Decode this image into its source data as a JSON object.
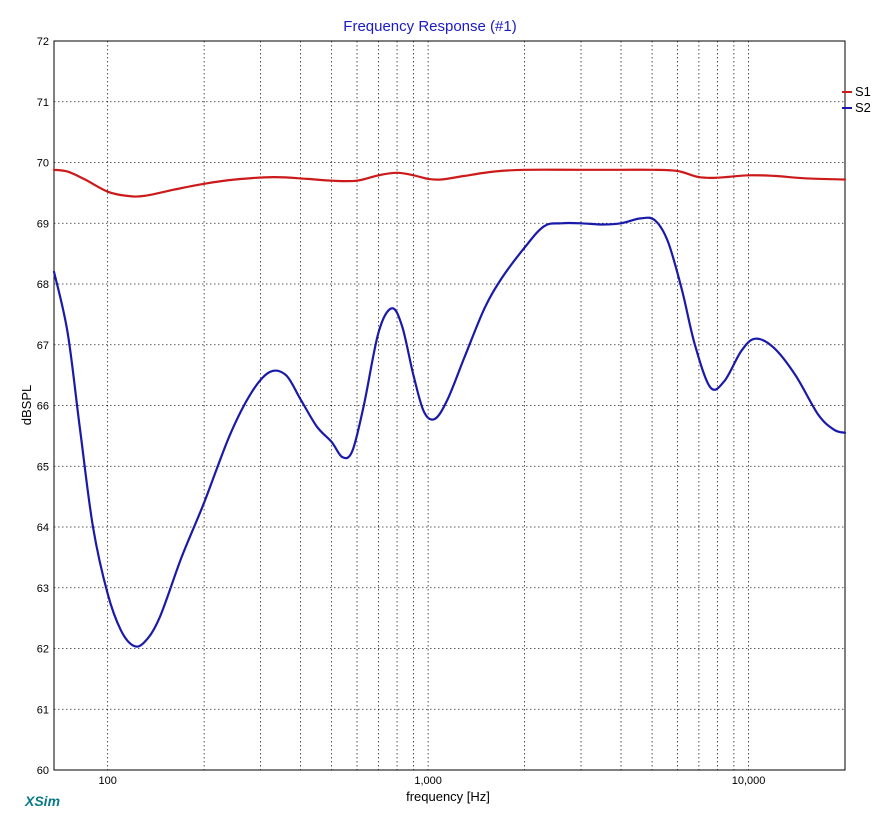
{
  "app": {
    "brand": "XSim"
  },
  "colors": {
    "s1": "#cc1a1a",
    "s2": "#1a1aaa",
    "title": "#1a1ac8",
    "brand": "#0a7a8a"
  },
  "chart_data": {
    "type": "line",
    "title": "Frequency Response (#1)",
    "xlabel": "frequency [Hz]",
    "ylabel": "dBSPL",
    "xscale": "log",
    "xlim": [
      68,
      20000
    ],
    "ylim": [
      60,
      72
    ],
    "grid": true,
    "legend_position": "top-right",
    "y_ticks": [
      60,
      61,
      62,
      63,
      64,
      65,
      66,
      67,
      68,
      69,
      70,
      71,
      72
    ],
    "x_ticks_labeled": [
      {
        "value": 100,
        "label": "100"
      },
      {
        "value": 1000,
        "label": "1,000"
      },
      {
        "value": 10000,
        "label": "10,000"
      }
    ],
    "x_grid": [
      100,
      200,
      300,
      400,
      500,
      600,
      700,
      800,
      900,
      1000,
      2000,
      3000,
      4000,
      5000,
      6000,
      7000,
      8000,
      9000,
      10000
    ],
    "series": [
      {
        "name": "S1",
        "color": "#cc1a1a",
        "points": [
          [
            68,
            69.88
          ],
          [
            75,
            69.85
          ],
          [
            85,
            69.72
          ],
          [
            100,
            69.52
          ],
          [
            115,
            69.45
          ],
          [
            130,
            69.45
          ],
          [
            160,
            69.55
          ],
          [
            200,
            69.65
          ],
          [
            250,
            69.72
          ],
          [
            330,
            69.76
          ],
          [
            420,
            69.73
          ],
          [
            500,
            69.7
          ],
          [
            600,
            69.7
          ],
          [
            700,
            69.79
          ],
          [
            800,
            69.83
          ],
          [
            900,
            69.79
          ],
          [
            1000,
            69.73
          ],
          [
            1100,
            69.72
          ],
          [
            1300,
            69.78
          ],
          [
            1600,
            69.85
          ],
          [
            2000,
            69.88
          ],
          [
            3000,
            69.88
          ],
          [
            4000,
            69.88
          ],
          [
            5000,
            69.88
          ],
          [
            6000,
            69.86
          ],
          [
            7000,
            69.76
          ],
          [
            8000,
            69.75
          ],
          [
            10000,
            69.79
          ],
          [
            12000,
            69.78
          ],
          [
            15000,
            69.74
          ],
          [
            20000,
            69.72
          ]
        ]
      },
      {
        "name": "S2",
        "color": "#1a1aaa",
        "points": [
          [
            68,
            68.2
          ],
          [
            75,
            67.2
          ],
          [
            82,
            65.6
          ],
          [
            90,
            64.0
          ],
          [
            100,
            62.9
          ],
          [
            110,
            62.3
          ],
          [
            120,
            62.05
          ],
          [
            130,
            62.1
          ],
          [
            145,
            62.5
          ],
          [
            170,
            63.5
          ],
          [
            200,
            64.4
          ],
          [
            240,
            65.5
          ],
          [
            280,
            66.2
          ],
          [
            320,
            66.55
          ],
          [
            360,
            66.5
          ],
          [
            400,
            66.1
          ],
          [
            450,
            65.65
          ],
          [
            500,
            65.4
          ],
          [
            540,
            65.15
          ],
          [
            580,
            65.25
          ],
          [
            630,
            66.0
          ],
          [
            700,
            67.2
          ],
          [
            770,
            67.6
          ],
          [
            830,
            67.3
          ],
          [
            900,
            66.5
          ],
          [
            970,
            65.9
          ],
          [
            1050,
            65.78
          ],
          [
            1150,
            66.1
          ],
          [
            1300,
            66.8
          ],
          [
            1500,
            67.6
          ],
          [
            1700,
            68.1
          ],
          [
            2000,
            68.6
          ],
          [
            2300,
            68.95
          ],
          [
            2600,
            69.0
          ],
          [
            3000,
            69.0
          ],
          [
            3500,
            68.98
          ],
          [
            4000,
            69.0
          ],
          [
            4600,
            69.08
          ],
          [
            5100,
            69.05
          ],
          [
            5600,
            68.7
          ],
          [
            6200,
            67.9
          ],
          [
            6800,
            67.0
          ],
          [
            7600,
            66.3
          ],
          [
            8400,
            66.4
          ],
          [
            9500,
            66.9
          ],
          [
            10500,
            67.1
          ],
          [
            12000,
            66.95
          ],
          [
            14000,
            66.5
          ],
          [
            16500,
            65.85
          ],
          [
            18500,
            65.6
          ],
          [
            20000,
            65.55
          ]
        ]
      }
    ]
  }
}
